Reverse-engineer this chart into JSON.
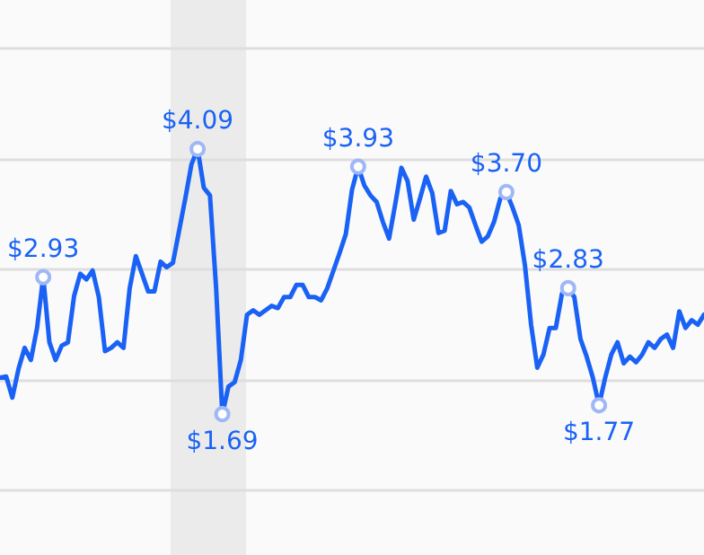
{
  "chart_data": {
    "type": "line",
    "categories": [
      null,
      null,
      null,
      null,
      null,
      null,
      null,
      null,
      null,
      null,
      null,
      null,
      null,
      null,
      null,
      null,
      null,
      null,
      null,
      null,
      null,
      null,
      null,
      null,
      null,
      null,
      null,
      null,
      null,
      null,
      null,
      null,
      null,
      null,
      null,
      null,
      null,
      null,
      null,
      null,
      null,
      null,
      null,
      null,
      null,
      null,
      null,
      null,
      null,
      null,
      null,
      null,
      null,
      null,
      null,
      null,
      null,
      null,
      null,
      null,
      null,
      null,
      null,
      null,
      null,
      null,
      null,
      null,
      null,
      null,
      null,
      null,
      null,
      null,
      null,
      null,
      null,
      null,
      null,
      null,
      null,
      null,
      null,
      null,
      null,
      null,
      null,
      null,
      null,
      null,
      null,
      null,
      null,
      null,
      null,
      null,
      null,
      null,
      null,
      null,
      null,
      null,
      null,
      null,
      null,
      null,
      null,
      null,
      null,
      null,
      null,
      null,
      null,
      null,
      null
    ],
    "series": [
      {
        "color": "#1a62f5",
        "values": [
          2.02,
          2.03,
          1.84,
          2.1,
          2.29,
          2.18,
          2.47,
          2.93,
          2.34,
          2.18,
          2.31,
          2.34,
          2.76,
          2.96,
          2.91,
          2.99,
          2.75,
          2.26,
          2.29,
          2.34,
          2.29,
          2.83,
          3.12,
          2.96,
          2.8,
          2.8,
          3.07,
          3.02,
          3.06,
          3.35,
          3.64,
          3.95,
          4.09,
          3.74,
          3.67,
          2.83,
          1.69,
          1.94,
          1.98,
          2.18,
          2.59,
          2.63,
          2.59,
          2.63,
          2.67,
          2.65,
          2.75,
          2.75,
          2.86,
          2.86,
          2.75,
          2.75,
          2.72,
          2.83,
          2.99,
          3.15,
          3.32,
          3.72,
          3.93,
          3.76,
          3.67,
          3.61,
          3.43,
          3.28,
          3.59,
          3.92,
          3.8,
          3.45,
          3.64,
          3.84,
          3.69,
          3.33,
          3.35,
          3.71,
          3.59,
          3.61,
          3.56,
          3.4,
          3.25,
          3.3,
          3.43,
          3.64,
          3.7,
          3.56,
          3.4,
          3.04,
          2.5,
          2.11,
          2.23,
          2.47,
          2.47,
          2.78,
          2.83,
          2.75,
          2.37,
          2.21,
          2.02,
          1.77,
          2.02,
          2.23,
          2.34,
          2.15,
          2.21,
          2.16,
          2.23,
          2.34,
          2.29,
          2.37,
          2.41,
          2.29,
          2.62,
          2.47,
          2.54,
          2.5,
          2.59
        ],
        "value_labels": [
          null,
          null,
          null,
          null,
          null,
          null,
          null,
          "$2.93",
          null,
          null,
          null,
          null,
          null,
          null,
          null,
          null,
          null,
          null,
          null,
          null,
          null,
          null,
          null,
          null,
          null,
          null,
          null,
          null,
          null,
          null,
          null,
          null,
          "$4.09",
          null,
          null,
          null,
          "$1.69",
          null,
          null,
          null,
          null,
          null,
          null,
          null,
          null,
          null,
          null,
          null,
          null,
          null,
          null,
          null,
          null,
          null,
          null,
          null,
          null,
          null,
          "$3.93",
          null,
          null,
          null,
          null,
          null,
          null,
          null,
          null,
          null,
          null,
          null,
          null,
          null,
          null,
          null,
          null,
          null,
          null,
          null,
          null,
          null,
          null,
          null,
          "$3.70",
          null,
          null,
          null,
          null,
          null,
          null,
          null,
          null,
          null,
          "$2.83",
          null,
          null,
          null,
          null,
          "$1.77",
          null,
          null,
          null,
          null,
          null,
          null,
          null,
          null,
          null,
          null,
          null,
          null,
          null,
          null,
          null,
          null,
          null
        ]
      }
    ],
    "yticks": [
      {
        "value": 1,
        "label": null
      },
      {
        "value": 2,
        "label": null
      },
      {
        "value": 3,
        "label": null
      },
      {
        "value": 4,
        "label": null
      },
      {
        "value": 5,
        "label": null
      }
    ],
    "grid": "y",
    "line_style": "solid"
  }
}
